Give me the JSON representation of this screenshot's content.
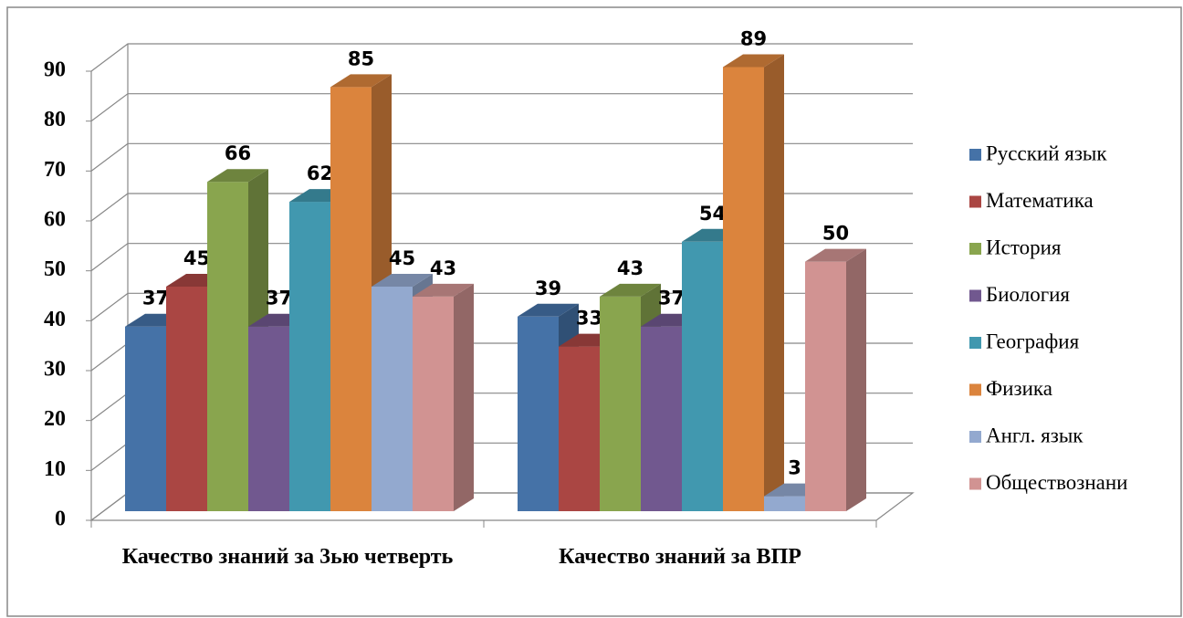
{
  "chart_data": {
    "type": "bar3d",
    "categories": [
      "Качество знаний за 3ью четверть",
      "Качество знаний за ВПР"
    ],
    "series": [
      {
        "name": "Русский язык",
        "color": "#4572a7",
        "values": [
          37,
          39
        ]
      },
      {
        "name": "Математика",
        "color": "#aa4643",
        "values": [
          45,
          33
        ]
      },
      {
        "name": "История",
        "color": "#89a54e",
        "values": [
          66,
          43
        ]
      },
      {
        "name": "Биология",
        "color": "#71588f",
        "values": [
          37,
          37
        ]
      },
      {
        "name": "География",
        "color": "#4198af",
        "values": [
          62,
          54
        ]
      },
      {
        "name": "Физика",
        "color": "#db843d",
        "values": [
          85,
          89
        ]
      },
      {
        "name": "Англ. язык",
        "color": "#93a9cf",
        "values": [
          45,
          3
        ]
      },
      {
        "name": "Обществознани",
        "color": "#d19392",
        "values": [
          43,
          50
        ]
      }
    ],
    "ylim": [
      0,
      90
    ],
    "yticks": [
      0,
      10,
      20,
      30,
      40,
      50,
      60,
      70,
      80,
      90
    ],
    "grid": true,
    "legend": "right"
  }
}
